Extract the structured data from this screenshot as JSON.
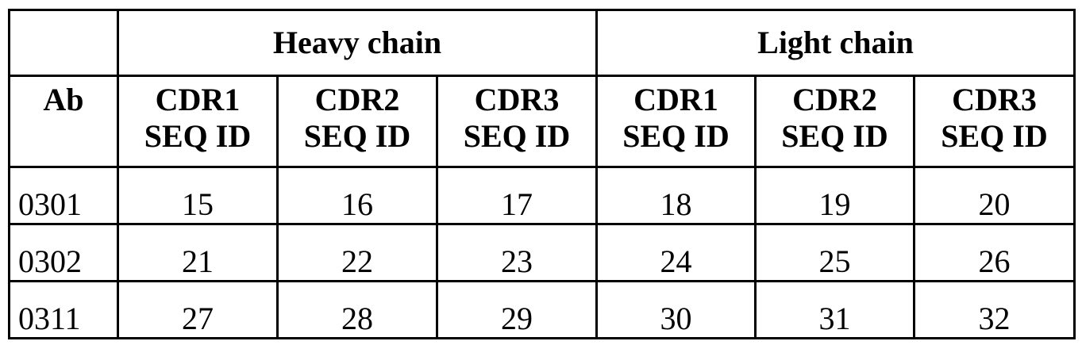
{
  "table": {
    "group_headers": [
      "",
      "Heavy chain",
      "Light chain"
    ],
    "first_col_header": "Ab",
    "columns": [
      {
        "l1": "CDR1",
        "l2": "SEQ ID"
      },
      {
        "l1": "CDR2",
        "l2": "SEQ ID"
      },
      {
        "l1": "CDR3",
        "l2": "SEQ ID"
      },
      {
        "l1": "CDR1",
        "l2": "SEQ ID"
      },
      {
        "l1": "CDR2",
        "l2": "SEQ ID"
      },
      {
        "l1": "CDR3",
        "l2": "SEQ ID"
      }
    ],
    "rows": [
      [
        "0301",
        "15",
        "16",
        "17",
        "18",
        "19",
        "20"
      ],
      [
        "0302",
        "21",
        "22",
        "23",
        "24",
        "25",
        "26"
      ],
      [
        "0311",
        "27",
        "28",
        "29",
        "30",
        "31",
        "32"
      ]
    ]
  }
}
